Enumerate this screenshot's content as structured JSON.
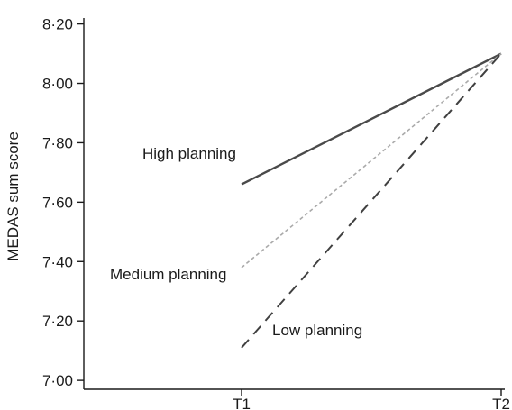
{
  "chart_data": {
    "type": "line",
    "title": "",
    "xlabel": "",
    "ylabel": "MEDAS sum score",
    "categories": [
      "T1",
      "T2"
    ],
    "ylim": [
      6.97,
      8.22
    ],
    "yticks": [
      "7·00",
      "7·20",
      "7·40",
      "7·60",
      "7·80",
      "8·00",
      "8·20"
    ],
    "ytick_values": [
      7.0,
      7.2,
      7.4,
      7.6,
      7.8,
      8.0,
      8.2
    ],
    "grid": false,
    "legend": "none",
    "series": [
      {
        "name": "High planning",
        "values": [
          7.66,
          8.1
        ],
        "color": "#4a4a4a",
        "style": "solid"
      },
      {
        "name": "Medium planning",
        "values": [
          7.38,
          8.1
        ],
        "color": "#aaaaaa",
        "style": "dotted"
      },
      {
        "name": "Low planning",
        "values": [
          7.11,
          8.1
        ],
        "color": "#404040",
        "style": "dashed"
      }
    ]
  }
}
